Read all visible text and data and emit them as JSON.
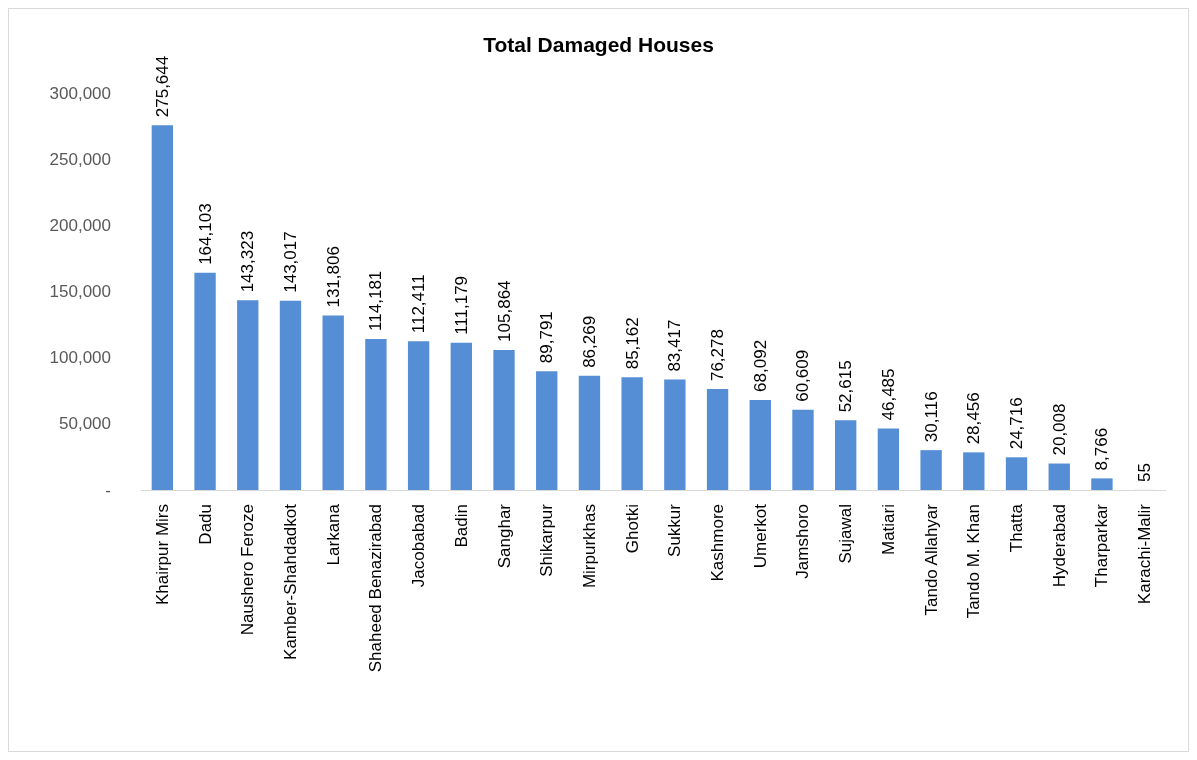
{
  "chart_data": {
    "type": "bar",
    "title": "Total Damaged Houses",
    "categories": [
      "Khairpur Mirs",
      "Dadu",
      "Naushero Feroze",
      "Kamber-Shahdadkot",
      "Larkana",
      "Shaheed Benazirabad",
      "Jacobabad",
      "Badin",
      "Sanghar",
      "Shikarpur",
      "Mirpurkhas",
      "Ghotki",
      "Sukkur",
      "Kashmore",
      "Umerkot",
      "Jamshoro",
      "Sujawal",
      "Matiari",
      "Tando Allahyar",
      "Tando M. Khan",
      "Thatta",
      "Hyderabad",
      "Tharparkar",
      "Karachi-Malir"
    ],
    "values": [
      275644,
      164103,
      143323,
      143017,
      131806,
      114181,
      112411,
      111179,
      105864,
      89791,
      86269,
      85162,
      83417,
      76278,
      68092,
      60609,
      52615,
      46485,
      30116,
      28456,
      24716,
      20008,
      8766,
      55
    ],
    "value_labels": [
      "275,644",
      "164,103",
      "143,323",
      "143,017",
      "131,806",
      "114,181",
      "112,411",
      "111,179",
      "105,864",
      "89,791",
      "86,269",
      "85,162",
      "83,417",
      "76,278",
      "68,092",
      "60,609",
      "52,615",
      "46,485",
      "30,116",
      "28,456",
      "24,716",
      "20,008",
      "8,766",
      "55"
    ],
    "color": "#558ed5",
    "ylim": [
      0,
      300000
    ],
    "yticks": [
      {
        "value": 0,
        "label": "-"
      },
      {
        "value": 50000,
        "label": "50,000"
      },
      {
        "value": 100000,
        "label": "100,000"
      },
      {
        "value": 150000,
        "label": "150,000"
      },
      {
        "value": 200000,
        "label": "200,000"
      },
      {
        "value": 250000,
        "label": "250,000"
      },
      {
        "value": 300000,
        "label": "300,000"
      }
    ],
    "grid": false
  }
}
